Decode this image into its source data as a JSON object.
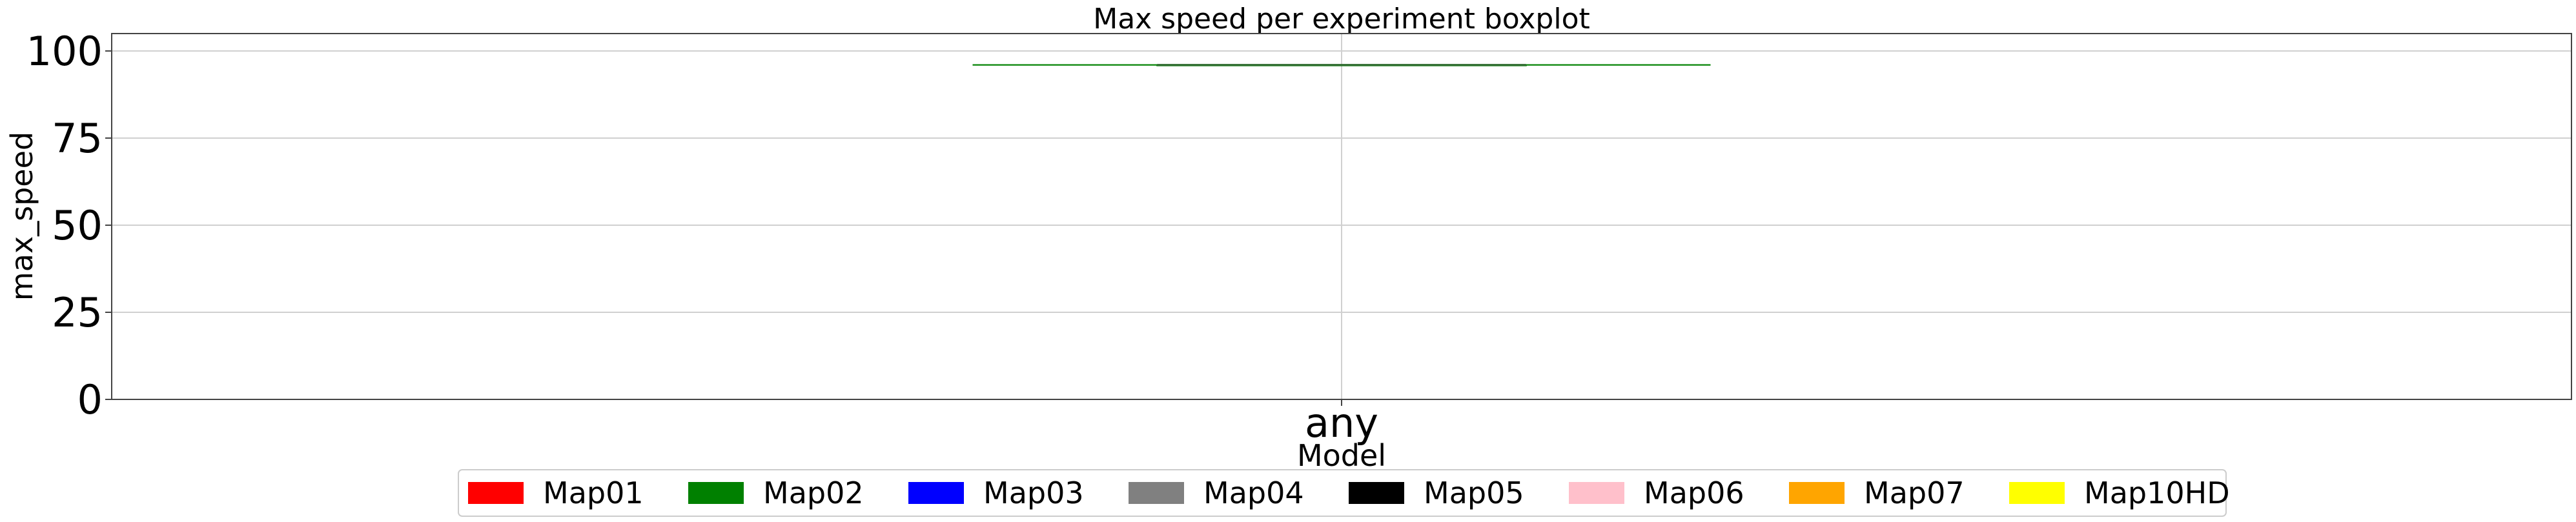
{
  "chart_data": {
    "type": "box",
    "title": "Max speed per experiment boxplot",
    "xlabel": "Model",
    "ylabel": "max_speed",
    "categories": [
      "any"
    ],
    "ylim": [
      0,
      105
    ],
    "yticks": [
      0,
      25,
      50,
      75,
      100
    ],
    "grid": true,
    "boxes": [
      {
        "category": "any",
        "min": 96,
        "q1": 96,
        "median": 96,
        "q3": 96,
        "max": 96,
        "color": "#008000"
      }
    ],
    "legend": {
      "placement": "bottom-center",
      "entries": [
        {
          "name": "Map01",
          "color": "#ff0000"
        },
        {
          "name": "Map02",
          "color": "#008000"
        },
        {
          "name": "Map03",
          "color": "#0000ff"
        },
        {
          "name": "Map04",
          "color": "#808080"
        },
        {
          "name": "Map05",
          "color": "#000000"
        },
        {
          "name": "Map06",
          "color": "#ffc0cb"
        },
        {
          "name": "Map07",
          "color": "#ffa500"
        },
        {
          "name": "Map10HD",
          "color": "#ffff00"
        }
      ]
    }
  }
}
